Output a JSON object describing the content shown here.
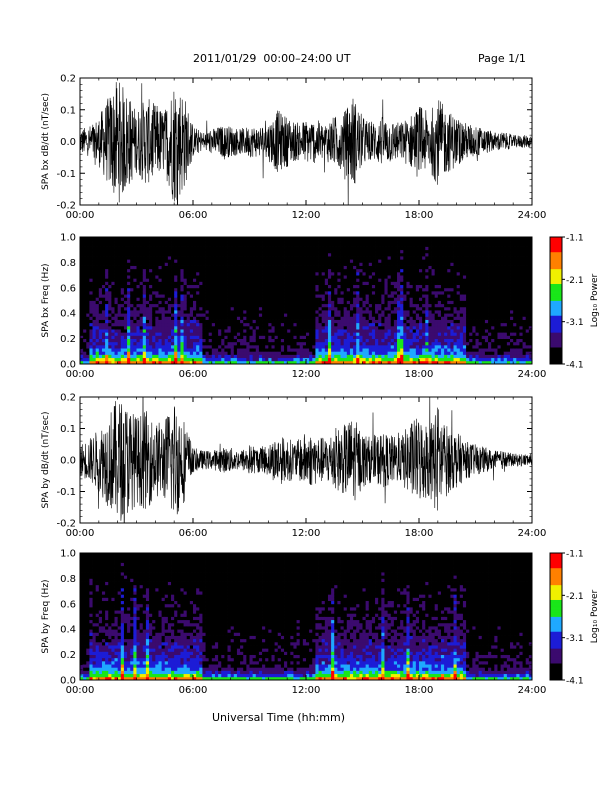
{
  "header": {
    "date_text": "2011/01/29  00:00–24:00 UT",
    "page_text": "Page 1/1"
  },
  "xlabel": "Universal Time (hh:mm)",
  "colorbar": {
    "label": "Log₁₀ Power",
    "ticks": [
      "-1.1",
      "-2.1",
      "-3.1",
      "-4.1"
    ],
    "range": [
      -4.1,
      -1.1
    ]
  },
  "chart_data": [
    {
      "type": "line",
      "ylabel": "SPA bx dB/dt (nT/sec)",
      "x_ticks": [
        "00:00",
        "06:00",
        "12:00",
        "18:00",
        "24:00"
      ],
      "y_ticks": [
        "-0.2",
        "-0.1",
        "0.0",
        "0.1",
        "0.2"
      ],
      "xlim": [
        0,
        24
      ],
      "ylim": [
        -0.2,
        0.2
      ],
      "series": [
        {
          "x_hours": [
            0,
            0.5,
            1.0,
            1.5,
            2.0,
            2.5,
            3.0,
            3.5,
            4.0,
            4.5,
            5.0,
            5.5,
            6.0,
            6.5,
            7.0,
            7.5,
            8.0,
            8.5,
            9.0,
            9.5,
            10.0,
            10.5,
            11.0,
            11.5,
            12.0,
            12.5,
            13.0,
            13.5,
            14.0,
            14.5,
            15.0,
            15.5,
            16.0,
            16.5,
            17.0,
            17.5,
            18.0,
            18.5,
            19.0,
            19.5,
            20.0,
            20.5,
            21.0,
            21.5,
            22.0,
            22.5,
            23.0,
            23.5,
            24.0
          ],
          "envelope": [
            0.04,
            0.05,
            0.08,
            0.14,
            0.2,
            0.16,
            0.1,
            0.14,
            0.12,
            0.1,
            0.2,
            0.16,
            0.05,
            0.03,
            0.04,
            0.05,
            0.05,
            0.04,
            0.05,
            0.05,
            0.06,
            0.1,
            0.08,
            0.06,
            0.07,
            0.07,
            0.06,
            0.08,
            0.09,
            0.15,
            0.08,
            0.06,
            0.08,
            0.07,
            0.06,
            0.08,
            0.12,
            0.09,
            0.14,
            0.1,
            0.08,
            0.06,
            0.05,
            0.04,
            0.03,
            0.03,
            0.02,
            0.02,
            0.02
          ]
        }
      ]
    },
    {
      "type": "heatmap",
      "ylabel": "SPA bx Freq (Hz)",
      "x_ticks": [
        "00:00",
        "06:00",
        "12:00",
        "18:00",
        "24:00"
      ],
      "y_ticks": [
        "0.0",
        "0.2",
        "0.4",
        "0.6",
        "0.8",
        "1.0"
      ],
      "xlim": [
        0,
        24
      ],
      "ylim": [
        0,
        1.0
      ],
      "active_hours": [
        [
          0.5,
          6.5
        ],
        [
          12.5,
          20.5
        ]
      ],
      "colorscale": [
        "#000000",
        "#3b0a6e",
        "#1c1cd6",
        "#1fa9ff",
        "#19e619",
        "#f0f000",
        "#ff8000",
        "#ff0000"
      ]
    },
    {
      "type": "line",
      "ylabel": "SPA by dB/dt (nT/sec)",
      "x_ticks": [
        "00:00",
        "06:00",
        "12:00",
        "18:00",
        "24:00"
      ],
      "y_ticks": [
        "-0.2",
        "-0.1",
        "0.0",
        "0.1",
        "0.2"
      ],
      "xlim": [
        0,
        24
      ],
      "ylim": [
        -0.2,
        0.2
      ],
      "series": [
        {
          "x_hours": [
            0,
            0.5,
            1.0,
            1.5,
            2.0,
            2.5,
            3.0,
            3.5,
            4.0,
            4.5,
            5.0,
            5.5,
            6.0,
            6.5,
            7.0,
            7.5,
            8.0,
            8.5,
            9.0,
            9.5,
            10.0,
            10.5,
            11.0,
            11.5,
            12.0,
            12.5,
            13.0,
            13.5,
            14.0,
            14.5,
            15.0,
            15.5,
            16.0,
            16.5,
            17.0,
            17.5,
            18.0,
            18.5,
            19.0,
            19.5,
            20.0,
            20.5,
            21.0,
            21.5,
            22.0,
            22.5,
            23.0,
            23.5,
            24.0
          ],
          "envelope": [
            0.05,
            0.07,
            0.1,
            0.15,
            0.2,
            0.18,
            0.14,
            0.16,
            0.12,
            0.13,
            0.2,
            0.14,
            0.04,
            0.03,
            0.03,
            0.04,
            0.04,
            0.03,
            0.05,
            0.04,
            0.05,
            0.08,
            0.07,
            0.06,
            0.09,
            0.08,
            0.07,
            0.1,
            0.11,
            0.14,
            0.09,
            0.07,
            0.09,
            0.08,
            0.07,
            0.12,
            0.14,
            0.12,
            0.18,
            0.11,
            0.09,
            0.06,
            0.05,
            0.04,
            0.03,
            0.03,
            0.02,
            0.02,
            0.02
          ]
        }
      ]
    },
    {
      "type": "heatmap",
      "ylabel": "SPA by Freq (Hz)",
      "x_ticks": [
        "00:00",
        "06:00",
        "12:00",
        "18:00",
        "24:00"
      ],
      "y_ticks": [
        "0.0",
        "0.2",
        "0.4",
        "0.6",
        "0.8",
        "1.0"
      ],
      "xlim": [
        0,
        24
      ],
      "ylim": [
        0,
        1.0
      ],
      "active_hours": [
        [
          0.5,
          6.5
        ],
        [
          12.5,
          20.5
        ]
      ],
      "colorscale": [
        "#000000",
        "#3b0a6e",
        "#1c1cd6",
        "#1fa9ff",
        "#19e619",
        "#f0f000",
        "#ff8000",
        "#ff0000"
      ]
    }
  ]
}
